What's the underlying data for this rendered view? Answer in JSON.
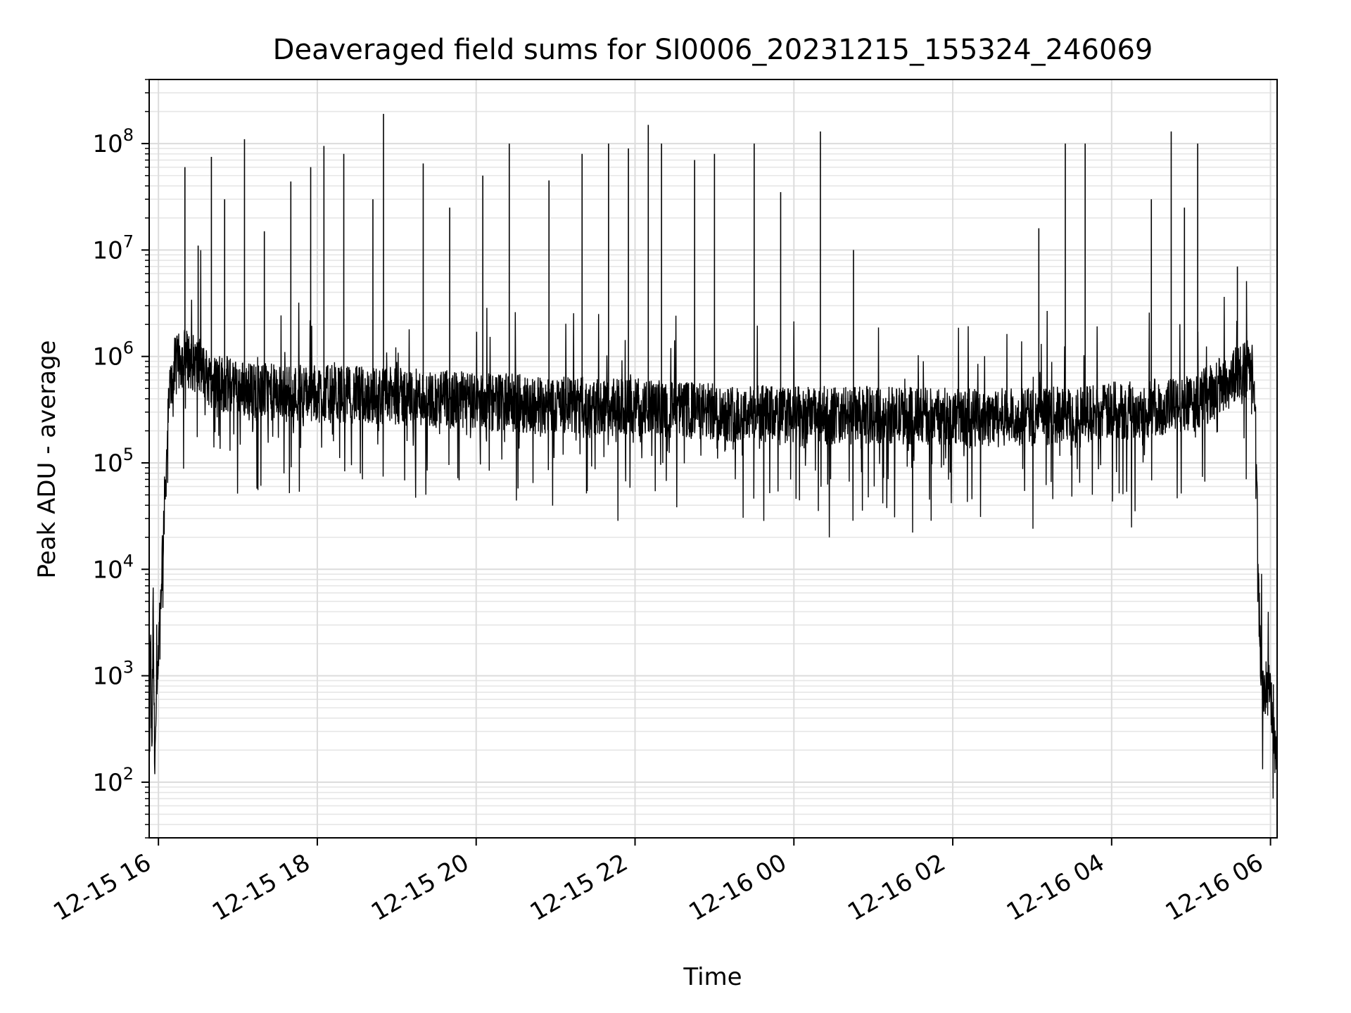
{
  "chart_data": {
    "type": "line",
    "title": "Deaveraged field sums for SI0006_20231215_155324_246069",
    "xlabel": "Time",
    "ylabel": "Peak ADU - average",
    "yscale": "log",
    "ylim": [
      30,
      400000000
    ],
    "xlim": [
      "2023-12-15 15:53",
      "2023-12-16 06:05"
    ],
    "grid": true,
    "x_ticks": [
      {
        "t": "2023-12-15 16:00",
        "label": "12-15 16"
      },
      {
        "t": "2023-12-15 18:00",
        "label": "12-15 18"
      },
      {
        "t": "2023-12-15 20:00",
        "label": "12-15 20"
      },
      {
        "t": "2023-12-15 22:00",
        "label": "12-15 22"
      },
      {
        "t": "2023-12-16 00:00",
        "label": "12-16 00"
      },
      {
        "t": "2023-12-16 02:00",
        "label": "12-16 02"
      },
      {
        "t": "2023-12-16 04:00",
        "label": "12-16 04"
      },
      {
        "t": "2023-12-16 06:00",
        "label": "12-16 06"
      }
    ],
    "y_ticks": [
      {
        "value": 100,
        "base": "10",
        "exp": "2"
      },
      {
        "value": 1000,
        "base": "10",
        "exp": "3"
      },
      {
        "value": 10000,
        "base": "10",
        "exp": "4"
      },
      {
        "value": 100000,
        "base": "10",
        "exp": "5"
      },
      {
        "value": 1000000,
        "base": "10",
        "exp": "6"
      },
      {
        "value": 10000000,
        "base": "10",
        "exp": "7"
      },
      {
        "value": 100000000,
        "base": "10",
        "exp": "8"
      }
    ],
    "series": [
      {
        "color": "#000000",
        "points": [
          [
            "2023-12-15 15:53",
            60
          ],
          [
            "2023-12-15 15:54",
            3000
          ],
          [
            "2023-12-15 15:55",
            130
          ],
          [
            "2023-12-15 15:56",
            5000
          ],
          [
            "2023-12-15 15:57",
            200
          ],
          [
            "2023-12-15 15:58",
            300
          ],
          [
            "2023-12-15 16:00",
            1200
          ],
          [
            "2023-12-15 16:03",
            15000
          ],
          [
            "2023-12-15 16:06",
            100000
          ],
          [
            "2023-12-15 16:08",
            400000
          ],
          [
            "2023-12-15 16:12",
            800000
          ],
          [
            "2023-12-15 16:20",
            1000000
          ],
          [
            "2023-12-15 16:30",
            800000
          ],
          [
            "2023-12-15 16:40",
            600000
          ],
          [
            "2023-12-15 17:00",
            500000
          ],
          [
            "2023-12-15 17:30",
            450000
          ],
          [
            "2023-12-15 18:00",
            450000
          ],
          [
            "2023-12-15 19:00",
            420000
          ],
          [
            "2023-12-15 20:00",
            380000
          ],
          [
            "2023-12-15 21:00",
            350000
          ],
          [
            "2023-12-15 22:00",
            330000
          ],
          [
            "2023-12-15 23:00",
            300000
          ],
          [
            "2023-12-16 00:00",
            280000
          ],
          [
            "2023-12-16 01:00",
            280000
          ],
          [
            "2023-12-16 02:00",
            270000
          ],
          [
            "2023-12-16 03:00",
            270000
          ],
          [
            "2023-12-16 04:00",
            300000
          ],
          [
            "2023-12-16 05:00",
            350000
          ],
          [
            "2023-12-16 05:30",
            600000
          ],
          [
            "2023-12-16 05:45",
            900000
          ],
          [
            "2023-12-16 05:48",
            500000
          ],
          [
            "2023-12-16 05:50",
            40000
          ],
          [
            "2023-12-16 05:52",
            2000
          ],
          [
            "2023-12-16 05:55",
            700
          ],
          [
            "2023-12-16 06:00",
            800
          ],
          [
            "2023-12-16 06:04",
            150
          ]
        ]
      }
    ],
    "spikes": [
      [
        "2023-12-15 16:20",
        60000000
      ],
      [
        "2023-12-15 16:30",
        11000000
      ],
      [
        "2023-12-15 16:40",
        75000000
      ],
      [
        "2023-12-15 16:50",
        30000000
      ],
      [
        "2023-12-15 17:05",
        110000000
      ],
      [
        "2023-12-15 17:20",
        15000000
      ],
      [
        "2023-12-15 17:40",
        44000000
      ],
      [
        "2023-12-15 17:55",
        60000000
      ],
      [
        "2023-12-15 18:05",
        95000000
      ],
      [
        "2023-12-15 18:20",
        80000000
      ],
      [
        "2023-12-15 18:42",
        30000000
      ],
      [
        "2023-12-15 18:50",
        190000000
      ],
      [
        "2023-12-15 19:20",
        65000000
      ],
      [
        "2023-12-15 19:40",
        25000000
      ],
      [
        "2023-12-15 20:05",
        50000000
      ],
      [
        "2023-12-15 20:25",
        100000000
      ],
      [
        "2023-12-15 20:55",
        45000000
      ],
      [
        "2023-12-15 21:20",
        80000000
      ],
      [
        "2023-12-15 21:40",
        100000000
      ],
      [
        "2023-12-15 21:55",
        90000000
      ],
      [
        "2023-12-15 22:10",
        150000000
      ],
      [
        "2023-12-15 22:20",
        100000000
      ],
      [
        "2023-12-15 22:45",
        70000000
      ],
      [
        "2023-12-15 23:00",
        80000000
      ],
      [
        "2023-12-15 23:30",
        100000000
      ],
      [
        "2023-12-15 23:50",
        35000000
      ],
      [
        "2023-12-16 00:20",
        130000000
      ],
      [
        "2023-12-16 00:45",
        10000000
      ],
      [
        "2023-12-16 03:05",
        16000000
      ],
      [
        "2023-12-16 03:25",
        100000000
      ],
      [
        "2023-12-16 03:40",
        100000000
      ],
      [
        "2023-12-16 04:30",
        30000000
      ],
      [
        "2023-12-16 04:45",
        130000000
      ],
      [
        "2023-12-16 04:55",
        25000000
      ],
      [
        "2023-12-16 05:05",
        100000000
      ],
      [
        "2023-12-16 05:35",
        7000000
      ]
    ]
  }
}
